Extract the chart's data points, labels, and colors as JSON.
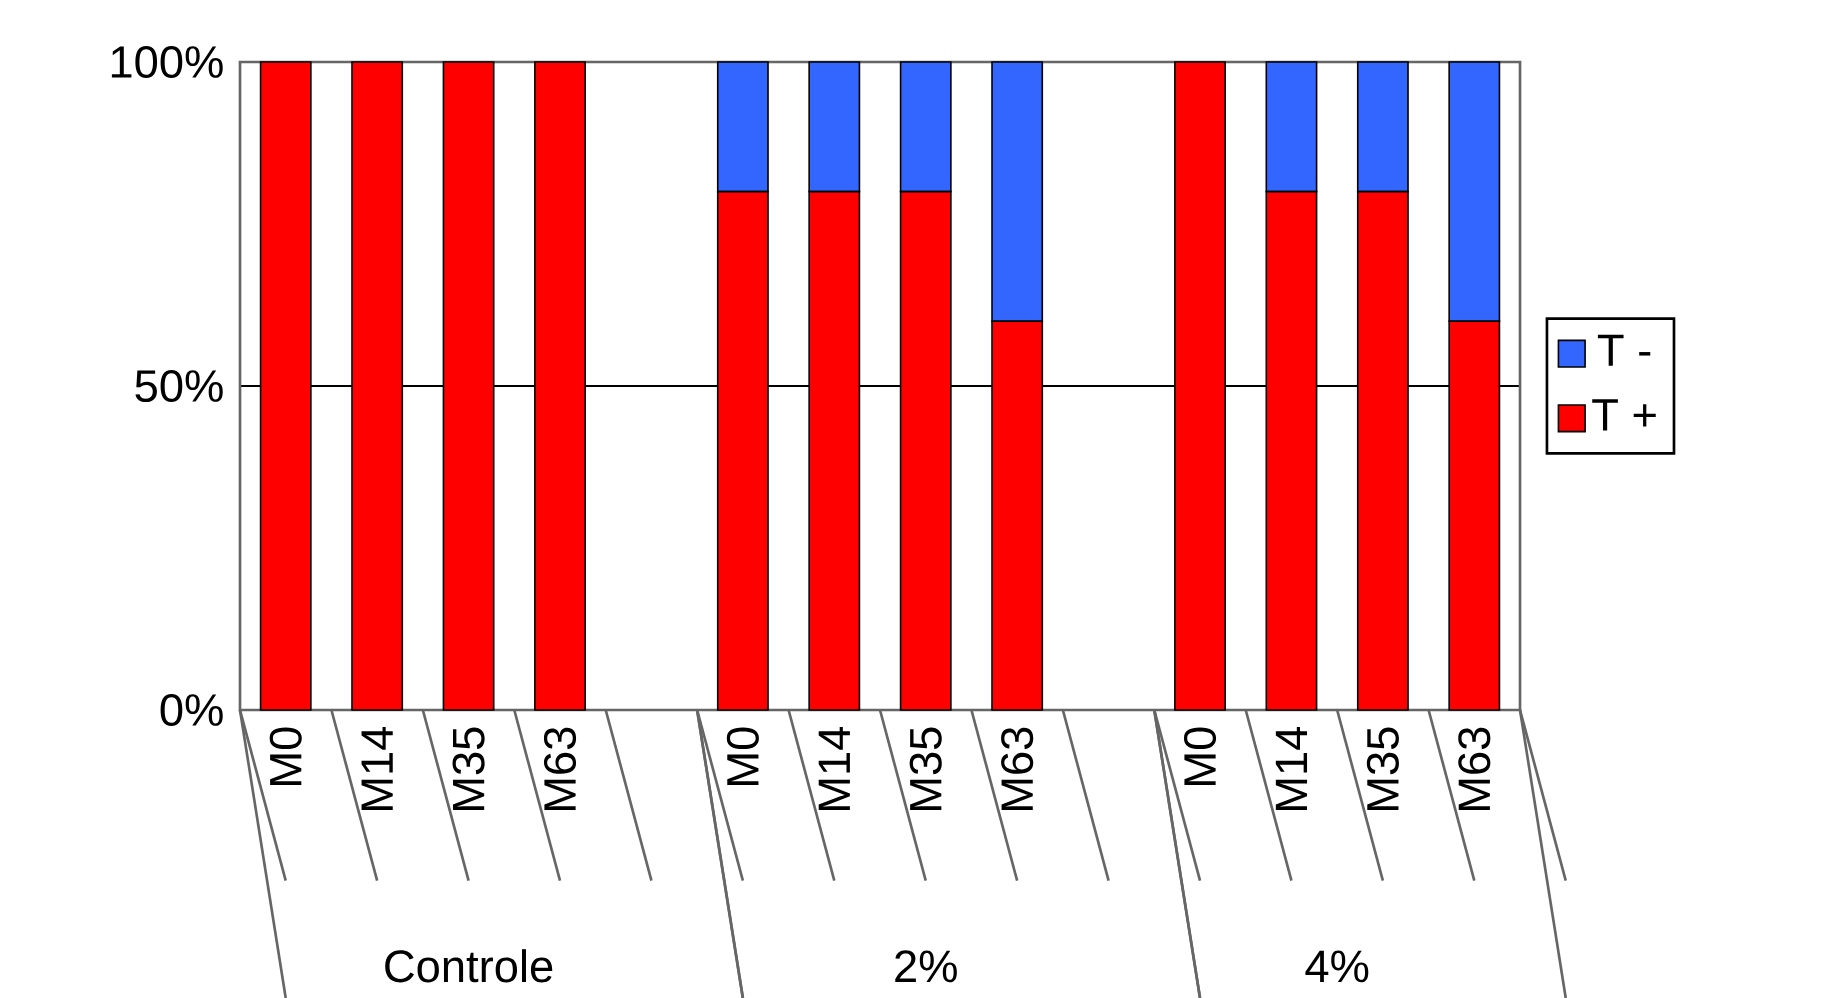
{
  "chart_data": {
    "type": "bar",
    "stacked": true,
    "categories": [
      "M0",
      "M14",
      "M35",
      "M63",
      null,
      "M0",
      "M14",
      "M35",
      "M63",
      null,
      "M0",
      "M14",
      "M35",
      "M63"
    ],
    "series": [
      {
        "name": "T +",
        "color": "#ff0000",
        "values": [
          100,
          100,
          100,
          100,
          null,
          80,
          80,
          80,
          60,
          null,
          100,
          80,
          80,
          60
        ]
      },
      {
        "name": "T -",
        "color": "#3366ff",
        "values": [
          0,
          0,
          0,
          0,
          null,
          20,
          20,
          20,
          40,
          null,
          0,
          20,
          20,
          40
        ]
      }
    ],
    "ylim": [
      0,
      100
    ],
    "yticks": [
      {
        "value": 0,
        "label": "0%"
      },
      {
        "value": 50,
        "label": "50%"
      },
      {
        "value": 100,
        "label": "100%"
      }
    ],
    "grid": "y",
    "legend": "right",
    "annotations": [
      "Controle",
      "2%",
      "4%"
    ]
  }
}
